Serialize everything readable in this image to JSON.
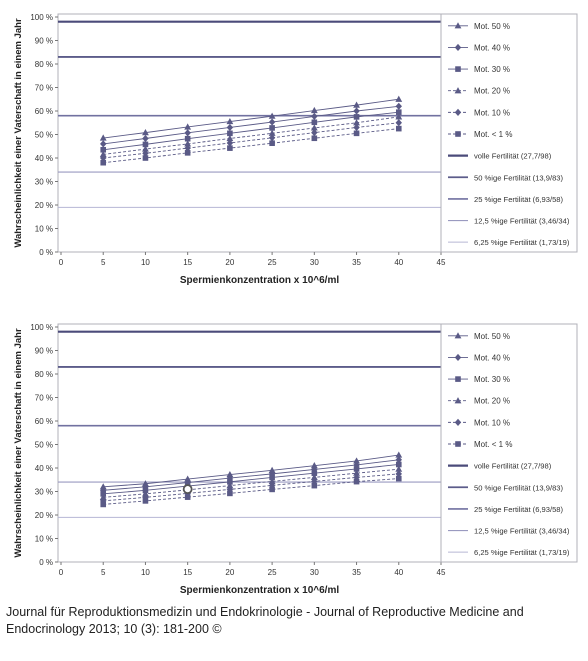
{
  "caption": {
    "line1": "Journal für Reproduktionsmedizin und Endokrinologie - Journal of Reproductive Medicine and",
    "line2": "Endocrinology 2013; 10 (3): 181-200 ©"
  },
  "chart_data": [
    {
      "type": "line",
      "title": "",
      "xlabel": "Spermienkonzentration x 10^6/ml",
      "ylabel": "Wahrscheinlichkeit einer Vaterschaft in einem Jahr",
      "xlim": [
        0,
        45
      ],
      "ylim": [
        0,
        100
      ],
      "x_ticks": [
        "0",
        "5",
        "10",
        "15",
        "20",
        "25",
        "30",
        "35",
        "40",
        "45"
      ],
      "y_ticks": [
        "0 %",
        "10 %",
        "20 %",
        "30 %",
        "40 %",
        "50 %",
        "60 %",
        "70 %",
        "80 %",
        "90 %",
        "100 %"
      ],
      "legend_position": "right",
      "series_x": [
        5,
        10,
        15,
        20,
        25,
        30,
        35,
        40
      ],
      "series": [
        {
          "name": "Mot. 50 %",
          "marker": "triangle",
          "dashed": false,
          "values": [
            48.5,
            50.8,
            53.2,
            55.5,
            57.8,
            60.2,
            62.5,
            65.0
          ]
        },
        {
          "name": "Mot. 40 %",
          "marker": "diamond",
          "dashed": false,
          "values": [
            46.0,
            48.3,
            50.7,
            53.0,
            55.3,
            57.7,
            60.0,
            62.0
          ]
        },
        {
          "name": "Mot. 30 %",
          "marker": "square",
          "dashed": false,
          "values": [
            43.5,
            45.8,
            48.2,
            50.5,
            52.8,
            55.2,
            57.5,
            59.5
          ]
        },
        {
          "name": "Mot. 20 %",
          "marker": "triangle",
          "dashed": true,
          "values": [
            41.5,
            43.8,
            46.0,
            48.3,
            50.5,
            52.8,
            55.0,
            57.5
          ]
        },
        {
          "name": "Mot. 10 %",
          "marker": "diamond",
          "dashed": true,
          "values": [
            40.0,
            42.0,
            44.2,
            46.4,
            48.6,
            50.8,
            53.0,
            55.0
          ]
        },
        {
          "name": "Mot. < 1 %",
          "marker": "square",
          "dashed": true,
          "values": [
            38.0,
            40.0,
            42.2,
            44.2,
            46.3,
            48.4,
            50.5,
            52.5
          ]
        }
      ],
      "reference_lines": [
        {
          "name": "volle Fertilität (27,7/98)",
          "value": 98
        },
        {
          "name": "50 %ige Fertilität (13,9/83)",
          "value": 83
        },
        {
          "name": "25 %ige Fertilität (6,93/58)",
          "value": 58
        },
        {
          "name": "12,5 %ige Fertilität (3,46/34)",
          "value": 34
        },
        {
          "name": "6,25 %ige Fertilität (1,73/19)",
          "value": 19
        }
      ],
      "highlight_points": []
    },
    {
      "type": "line",
      "title": "",
      "xlabel": "Spermienkonzentration x 10^6/ml",
      "ylabel": "Wahrscheinlichkeit einer Vaterschaft in einem Jahr",
      "xlim": [
        0,
        45
      ],
      "ylim": [
        0,
        100
      ],
      "x_ticks": [
        "0",
        "5",
        "10",
        "15",
        "20",
        "25",
        "30",
        "35",
        "40",
        "45"
      ],
      "y_ticks": [
        "0 %",
        "10 %",
        "20 %",
        "30 %",
        "40 %",
        "50 %",
        "60 %",
        "70 %",
        "80 %",
        "90 %",
        "100 %"
      ],
      "legend_position": "right",
      "series_x": [
        5,
        10,
        15,
        20,
        25,
        30,
        35,
        40
      ],
      "series": [
        {
          "name": "Mot. 50 %",
          "marker": "triangle",
          "dashed": false,
          "values": [
            32.0,
            33.3,
            35.3,
            37.2,
            39.0,
            41.0,
            43.0,
            45.5
          ]
        },
        {
          "name": "Mot. 40 %",
          "marker": "diamond",
          "dashed": false,
          "values": [
            30.5,
            32.0,
            33.8,
            35.7,
            37.5,
            39.4,
            41.3,
            43.5
          ]
        },
        {
          "name": "Mot. 30 %",
          "marker": "square",
          "dashed": false,
          "values": [
            29.0,
            30.5,
            32.3,
            34.1,
            36.0,
            37.8,
            39.6,
            41.5
          ]
        },
        {
          "name": "Mot. 20 %",
          "marker": "triangle",
          "dashed": true,
          "values": [
            27.5,
            29.0,
            30.7,
            32.5,
            34.3,
            36.0,
            37.8,
            39.5
          ]
        },
        {
          "name": "Mot. 10 %",
          "marker": "diamond",
          "dashed": true,
          "values": [
            26.0,
            27.5,
            29.2,
            30.9,
            32.6,
            34.3,
            36.0,
            37.5
          ]
        },
        {
          "name": "Mot. < 1 %",
          "marker": "square",
          "dashed": true,
          "values": [
            24.5,
            26.0,
            27.6,
            29.2,
            30.9,
            32.5,
            34.2,
            35.5
          ]
        }
      ],
      "reference_lines": [
        {
          "name": "volle Fertilität (27,7/98)",
          "value": 98
        },
        {
          "name": "50 %ige Fertilität (13,9/83)",
          "value": 83
        },
        {
          "name": "25 %ige Fertilität (6,93/58)",
          "value": 58
        },
        {
          "name": "12,5 %ige Fertilität (3,46/34)",
          "value": 34
        },
        {
          "name": "6,25 %ige Fertilität (1,73/19)",
          "value": 19
        }
      ],
      "highlight_points": [
        {
          "x": 15,
          "y": 31
        }
      ]
    }
  ]
}
